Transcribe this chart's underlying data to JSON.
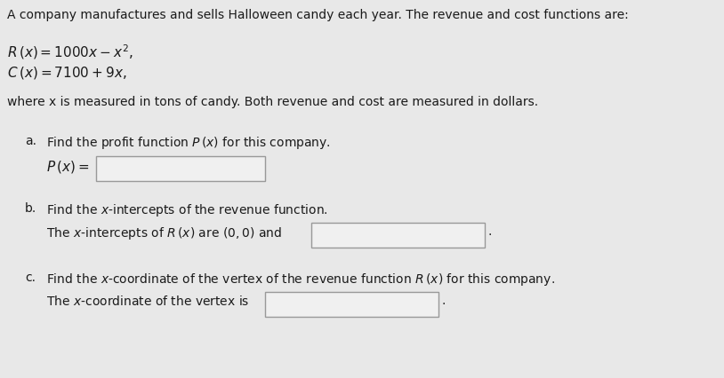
{
  "bg_color": "#e8e8e8",
  "text_color": "#1a1a1a",
  "box_facecolor": "#f0f0f0",
  "box_edgecolor": "#999999",
  "title_line": "A company manufactures and sells Halloween candy each year. The revenue and cost functions are:",
  "where_line": "where x is measured in tons of candy. Both revenue and cost are measured in dollars.",
  "part_a_label": "a.",
  "part_b_label": "b.",
  "part_c_label": "c.",
  "font_main": 10.0,
  "font_eq": 11.0
}
